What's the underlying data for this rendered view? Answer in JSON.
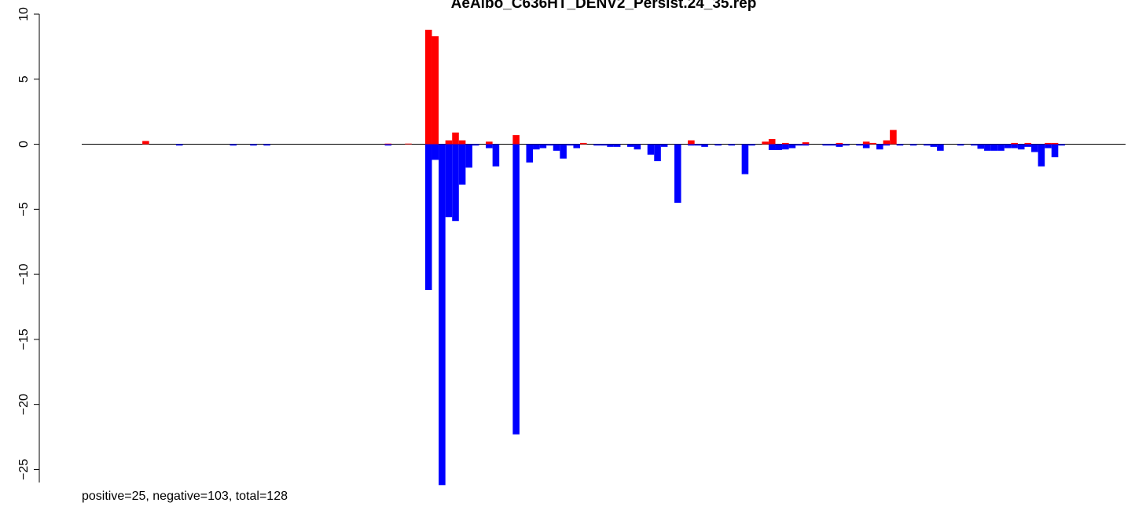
{
  "chart_data": {
    "type": "bar",
    "title": "AeAlbo_C636HT_DENV2_Persist.24_35.rep",
    "xlabel": "",
    "ylabel": "",
    "xlim": [
      0,
      155
    ],
    "ylim": [
      -26,
      10
    ],
    "y_ticks": [
      10,
      5,
      0,
      -5,
      -10,
      -15,
      -20,
      -25
    ],
    "y_tick_labels": [
      "10",
      "5",
      "0",
      "−5",
      "−10",
      "−15",
      "−20",
      "−25"
    ],
    "annotation": "positive=25, negative=103, total=128",
    "series": [
      {
        "color": "#ff0000",
        "points": [
          {
            "x": 9,
            "y": 0.25
          },
          {
            "x": 45,
            "y": 0.05
          },
          {
            "x": 48,
            "y": 0.05
          },
          {
            "x": 51,
            "y": 8.8
          },
          {
            "x": 52,
            "y": 8.3
          },
          {
            "x": 54,
            "y": 0.3
          },
          {
            "x": 55,
            "y": 0.9
          },
          {
            "x": 56,
            "y": 0.3
          },
          {
            "x": 60,
            "y": 0.2
          },
          {
            "x": 64,
            "y": 0.7
          },
          {
            "x": 74,
            "y": 0.1
          },
          {
            "x": 90,
            "y": 0.3
          },
          {
            "x": 101,
            "y": 0.2
          },
          {
            "x": 102,
            "y": 0.4
          },
          {
            "x": 104,
            "y": 0.1
          },
          {
            "x": 107,
            "y": 0.15
          },
          {
            "x": 112,
            "y": 0.1
          },
          {
            "x": 116,
            "y": 0.2
          },
          {
            "x": 117,
            "y": 0.1
          },
          {
            "x": 119,
            "y": 0.3
          },
          {
            "x": 120,
            "y": 1.1
          },
          {
            "x": 138,
            "y": 0.1
          },
          {
            "x": 140,
            "y": 0.1
          },
          {
            "x": 143,
            "y": 0.1
          },
          {
            "x": 144,
            "y": 0.1
          }
        ]
      },
      {
        "color": "#0000ff",
        "points": [
          {
            "x": 14,
            "y": -0.1
          },
          {
            "x": 22,
            "y": -0.1
          },
          {
            "x": 25,
            "y": -0.1
          },
          {
            "x": 27,
            "y": -0.1
          },
          {
            "x": 45,
            "y": -0.1
          },
          {
            "x": 51,
            "y": -11.2
          },
          {
            "x": 52,
            "y": -1.2
          },
          {
            "x": 53,
            "y": -26.2
          },
          {
            "x": 54,
            "y": -5.6
          },
          {
            "x": 55,
            "y": -5.9
          },
          {
            "x": 56,
            "y": -3.1
          },
          {
            "x": 57,
            "y": -1.8
          },
          {
            "x": 58,
            "y": -0.1
          },
          {
            "x": 60,
            "y": -0.3
          },
          {
            "x": 61,
            "y": -1.7
          },
          {
            "x": 64,
            "y": -22.3
          },
          {
            "x": 66,
            "y": -1.4
          },
          {
            "x": 67,
            "y": -0.4
          },
          {
            "x": 68,
            "y": -0.3
          },
          {
            "x": 69,
            "y": -0.1
          },
          {
            "x": 70,
            "y": -0.5
          },
          {
            "x": 71,
            "y": -1.1
          },
          {
            "x": 72,
            "y": -0.1
          },
          {
            "x": 73,
            "y": -0.3
          },
          {
            "x": 76,
            "y": -0.1
          },
          {
            "x": 77,
            "y": -0.1
          },
          {
            "x": 78,
            "y": -0.2
          },
          {
            "x": 79,
            "y": -0.2
          },
          {
            "x": 81,
            "y": -0.2
          },
          {
            "x": 82,
            "y": -0.4
          },
          {
            "x": 84,
            "y": -0.8
          },
          {
            "x": 85,
            "y": -1.3
          },
          {
            "x": 86,
            "y": -0.2
          },
          {
            "x": 88,
            "y": -4.5
          },
          {
            "x": 90,
            "y": -0.1
          },
          {
            "x": 91,
            "y": -0.1
          },
          {
            "x": 92,
            "y": -0.2
          },
          {
            "x": 94,
            "y": -0.1
          },
          {
            "x": 96,
            "y": -0.1
          },
          {
            "x": 98,
            "y": -2.3
          },
          {
            "x": 99,
            "y": -0.1
          },
          {
            "x": 102,
            "y": -0.45
          },
          {
            "x": 103,
            "y": -0.45
          },
          {
            "x": 104,
            "y": -0.4
          },
          {
            "x": 105,
            "y": -0.3
          },
          {
            "x": 106,
            "y": -0.1
          },
          {
            "x": 107,
            "y": -0.1
          },
          {
            "x": 110,
            "y": -0.1
          },
          {
            "x": 111,
            "y": -0.1
          },
          {
            "x": 112,
            "y": -0.2
          },
          {
            "x": 113,
            "y": -0.1
          },
          {
            "x": 115,
            "y": -0.1
          },
          {
            "x": 116,
            "y": -0.3
          },
          {
            "x": 118,
            "y": -0.4
          },
          {
            "x": 119,
            "y": -0.1
          },
          {
            "x": 121,
            "y": -0.1
          },
          {
            "x": 123,
            "y": -0.1
          },
          {
            "x": 125,
            "y": -0.1
          },
          {
            "x": 126,
            "y": -0.2
          },
          {
            "x": 127,
            "y": -0.5
          },
          {
            "x": 130,
            "y": -0.1
          },
          {
            "x": 132,
            "y": -0.1
          },
          {
            "x": 133,
            "y": -0.35
          },
          {
            "x": 134,
            "y": -0.5
          },
          {
            "x": 135,
            "y": -0.5
          },
          {
            "x": 136,
            "y": -0.5
          },
          {
            "x": 137,
            "y": -0.3
          },
          {
            "x": 138,
            "y": -0.3
          },
          {
            "x": 139,
            "y": -0.4
          },
          {
            "x": 140,
            "y": -0.2
          },
          {
            "x": 141,
            "y": -0.6
          },
          {
            "x": 142,
            "y": -1.7
          },
          {
            "x": 143,
            "y": -0.3
          },
          {
            "x": 144,
            "y": -1.0
          },
          {
            "x": 145,
            "y": -0.1
          }
        ]
      }
    ]
  }
}
